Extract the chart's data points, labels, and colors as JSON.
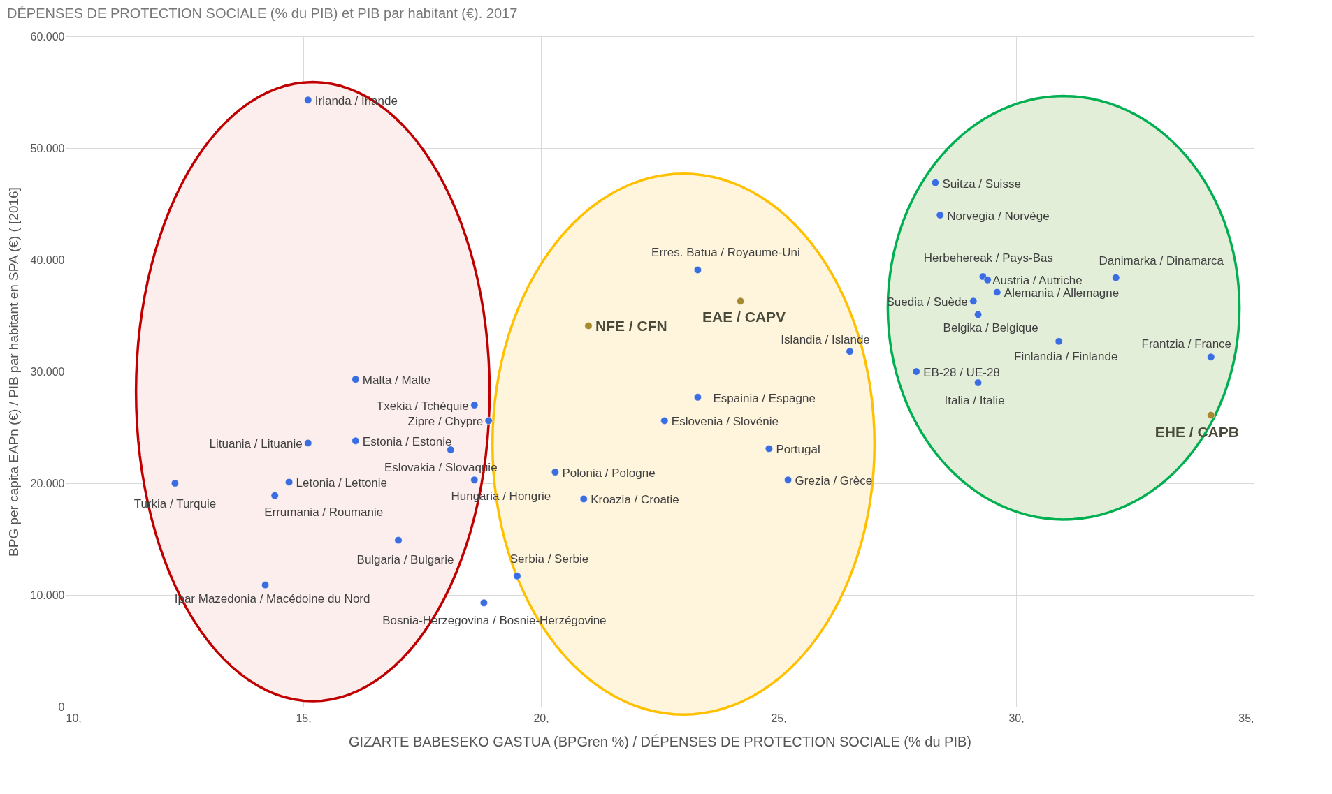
{
  "chart_data": {
    "type": "scatter",
    "title": "DÉPENSES DE PROTECTION SOCIALE (% du PIB) et PIB par habitant (€). 2017",
    "xlabel": "GIZARTE BABESEKO GASTUA (BPGren %) / DÉPENSES DE PROTECTION SOCIALE (% du PIB)",
    "ylabel": "BPG per capita EAPn (€) / PIB par habitant en SPA (€) ( [2016]",
    "xlim": [
      10,
      35
    ],
    "xticks": [
      {
        "value": 10,
        "label": "10,"
      },
      {
        "value": 15,
        "label": "15,"
      },
      {
        "value": 20,
        "label": "20,"
      },
      {
        "value": 25,
        "label": "25,"
      },
      {
        "value": 30,
        "label": "30,"
      },
      {
        "value": 35,
        "label": "35,"
      }
    ],
    "ylim": [
      0,
      60000
    ],
    "yticks": [
      0,
      {
        "value": 10000,
        "label": "10.000"
      },
      {
        "value": 20000,
        "label": "20.000"
      },
      {
        "value": 30000,
        "label": "30.000"
      },
      {
        "value": 40000,
        "label": "40.000"
      },
      {
        "value": 50000,
        "label": "50.000"
      },
      {
        "value": 60000,
        "label": "60.000"
      }
    ],
    "grid": true,
    "marker": "circle",
    "series": [
      {
        "name": "Irlanda / Irlande",
        "color": "#3a6ee0",
        "x": [
          15.1
        ],
        "values": [
          54300
        ]
      },
      {
        "name": "Malta / Malte",
        "color": "#3a6ee0",
        "x": [
          16.1
        ],
        "values": [
          29300
        ]
      },
      {
        "name": "Txekia / Tchéquie",
        "color": "#3a6ee0",
        "x": [
          18.6
        ],
        "values": [
          27000
        ]
      },
      {
        "name": "Zipre / Chypre",
        "color": "#3a6ee0",
        "x": [
          18.9
        ],
        "values": [
          25600
        ]
      },
      {
        "name": "Lituania / Lituanie",
        "color": "#3a6ee0",
        "x": [
          15.1
        ],
        "values": [
          23600
        ]
      },
      {
        "name": "Estonia / Estonie",
        "color": "#3a6ee0",
        "x": [
          16.1
        ],
        "values": [
          23800
        ]
      },
      {
        "name": "Eslovakia / Slovaquie",
        "color": "#3a6ee0",
        "x": [
          18.1
        ],
        "values": [
          23000
        ]
      },
      {
        "name": "Turkia / Turquie",
        "color": "#3a6ee0",
        "x": [
          12.3
        ],
        "values": [
          20000
        ]
      },
      {
        "name": "Letonia / Lettonie",
        "color": "#3a6ee0",
        "x": [
          14.7
        ],
        "values": [
          20100
        ]
      },
      {
        "name": "Errumania / Roumanie",
        "color": "#3a6ee0",
        "x": [
          14.4
        ],
        "values": [
          18900
        ]
      },
      {
        "name": "Hungaria / Hongrie",
        "color": "#3a6ee0",
        "x": [
          18.6
        ],
        "values": [
          20300
        ]
      },
      {
        "name": "Bulgaria / Bulgarie",
        "color": "#3a6ee0",
        "x": [
          17.0
        ],
        "values": [
          14900
        ]
      },
      {
        "name": "Ipar Mazedonia / Macédoine du Nord",
        "color": "#3a6ee0",
        "x": [
          14.2
        ],
        "values": [
          10900
        ]
      },
      {
        "name": "Serbia / Serbie",
        "color": "#3a6ee0",
        "x": [
          19.5
        ],
        "values": [
          11700
        ]
      },
      {
        "name": "Bosnia-Herzegovina / Bosnie-Herzégovine",
        "color": "#3a6ee0",
        "x": [
          18.8
        ],
        "values": [
          9300
        ]
      },
      {
        "name": "Erres. Batua / Royaume-Uni",
        "color": "#3a6ee0",
        "x": [
          23.3
        ],
        "values": [
          39100
        ]
      },
      {
        "name": "EAE / CAPV",
        "color": "#a88a2e",
        "x": [
          24.2
        ],
        "values": [
          36300
        ]
      },
      {
        "name": "NFE / CFN",
        "color": "#a88a2e",
        "x": [
          21.0
        ],
        "values": [
          34100
        ]
      },
      {
        "name": "Islandia / Islande",
        "color": "#3a6ee0",
        "x": [
          26.5
        ],
        "values": [
          31800
        ]
      },
      {
        "name": "Espainia / Espagne",
        "color": "#3a6ee0",
        "x": [
          23.3
        ],
        "values": [
          27700
        ]
      },
      {
        "name": "Eslovenia / Slovénie",
        "color": "#3a6ee0",
        "x": [
          22.6
        ],
        "values": [
          25600
        ]
      },
      {
        "name": "Portugal",
        "color": "#3a6ee0",
        "x": [
          24.8
        ],
        "values": [
          23100
        ]
      },
      {
        "name": "Polonia / Pologne",
        "color": "#3a6ee0",
        "x": [
          20.3
        ],
        "values": [
          21000
        ]
      },
      {
        "name": "Kroazia / Croatie",
        "color": "#3a6ee0",
        "x": [
          20.9
        ],
        "values": [
          18600
        ]
      },
      {
        "name": "Grezia / Grèce",
        "color": "#3a6ee0",
        "x": [
          25.2
        ],
        "values": [
          20300
        ]
      },
      {
        "name": "Suitza / Suisse",
        "color": "#3a6ee0",
        "x": [
          28.3
        ],
        "values": [
          46900
        ]
      },
      {
        "name": "Norvegia / Norvège",
        "color": "#3a6ee0",
        "x": [
          28.4
        ],
        "values": [
          44000
        ]
      },
      {
        "name": "Herbehereak / Pays-Bas",
        "color": "#3a6ee0",
        "x": [
          29.3
        ],
        "values": [
          38500
        ]
      },
      {
        "name": "Austria / Autriche",
        "color": "#3a6ee0",
        "x": [
          29.4
        ],
        "values": [
          38200
        ]
      },
      {
        "name": "Danimarka / Dinamarca",
        "color": "#3a6ee0",
        "x": [
          32.1
        ],
        "values": [
          38400
        ]
      },
      {
        "name": "Alemania / Allemagne",
        "color": "#3a6ee0",
        "x": [
          29.6
        ],
        "values": [
          37100
        ]
      },
      {
        "name": "Suedia / Suède",
        "color": "#3a6ee0",
        "x": [
          29.1
        ],
        "values": [
          36300
        ]
      },
      {
        "name": "Belgika / Belgique",
        "color": "#3a6ee0",
        "x": [
          29.2
        ],
        "values": [
          35100
        ]
      },
      {
        "name": "Finlandia / Finlande",
        "color": "#3a6ee0",
        "x": [
          30.9
        ],
        "values": [
          32700
        ]
      },
      {
        "name": "Frantzia / France",
        "color": "#3a6ee0",
        "x": [
          34.1
        ],
        "values": [
          31300
        ]
      },
      {
        "name": "EB-28 / UE-28",
        "color": "#3a6ee0",
        "x": [
          27.9
        ],
        "values": [
          30000
        ]
      },
      {
        "name": "Italia / Italie",
        "color": "#3a6ee0",
        "x": [
          29.2
        ],
        "values": [
          29000
        ]
      },
      {
        "name": "EHE / CAPB",
        "color": "#a88a2e",
        "x": [
          34.1
        ],
        "values": [
          26100
        ]
      }
    ]
  }
}
